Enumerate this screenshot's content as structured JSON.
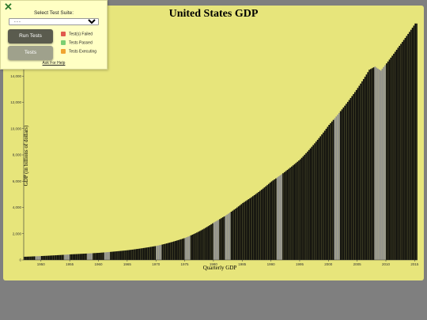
{
  "chart": {
    "title": "United States GDP",
    "xlabel": "Quarterly GDP",
    "ylabel": "GDP (in billions of dollars)",
    "highlight_color": "#8f8f8f",
    "bar_color": "#0a0a0a"
  },
  "panel": {
    "title": "Select Test Suite:",
    "select_value": "- - -",
    "run_label": "Run Tests",
    "tests_label": "Tests",
    "help_label": "Ask For Help",
    "legend": [
      {
        "label": "Test(s) Failed",
        "color": "#e15a4e"
      },
      {
        "label": "Tests Passed",
        "color": "#7ccf72"
      },
      {
        "label": "Tests Executing",
        "color": "#f0a431"
      }
    ]
  },
  "chart_data": {
    "type": "bar",
    "title": "United States GDP",
    "xlabel": "Quarterly GDP",
    "ylabel": "GDP (in billions of dollars)",
    "x_range": [
      1947,
      2015.5
    ],
    "ylim": [
      0,
      16000
    ],
    "x_ticks": [
      "1950",
      "1955",
      "1960",
      "1965",
      "1970",
      "1975",
      "1980",
      "1985",
      "1990",
      "1995",
      "2000",
      "2005",
      "2010",
      "2015"
    ],
    "y_ticks": [
      "0",
      "2,000",
      "4,000",
      "6,000",
      "8,000",
      "10,000",
      "12,000",
      "14,000",
      "16,000"
    ],
    "annual_points": [
      [
        1947,
        243
      ],
      [
        1950,
        300
      ],
      [
        1955,
        426
      ],
      [
        1960,
        543
      ],
      [
        1965,
        743
      ],
      [
        1970,
        1073
      ],
      [
        1975,
        1688
      ],
      [
        1980,
        2862
      ],
      [
        1985,
        4339
      ],
      [
        1990,
        5980
      ],
      [
        1995,
        7664
      ],
      [
        2000,
        10285
      ],
      [
        2005,
        13094
      ],
      [
        2007,
        14480
      ],
      [
        2008,
        14720
      ],
      [
        2009,
        14418
      ],
      [
        2010,
        14964
      ],
      [
        2012,
        16155
      ],
      [
        2015,
        18000
      ]
    ],
    "highlighted_years": [
      1949,
      1954,
      1958,
      1961,
      1970,
      1975,
      1980,
      1982,
      1991,
      2001,
      2008,
      2009
    ]
  }
}
